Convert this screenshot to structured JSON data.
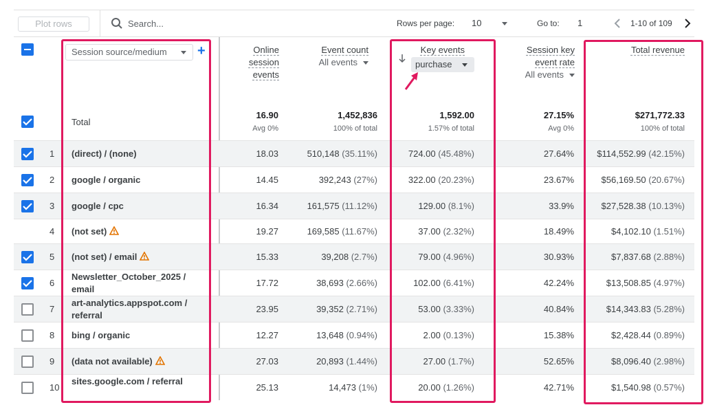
{
  "toolbar": {
    "plot_rows": "Plot rows",
    "search_placeholder": "Search...",
    "rows_per_page_label": "Rows per page:",
    "rows_per_page_value": "10",
    "goto_label": "Go to:",
    "goto_value": "1",
    "range_text": "1-10 of 109"
  },
  "header": {
    "dimension": "Session source/medium",
    "col_online": [
      "Online",
      "session",
      "events"
    ],
    "col_event_count": "Event count",
    "col_event_count_sub": "All events",
    "col_key_events": "Key events",
    "col_key_events_sub": "purchase",
    "col_session_key": [
      "Session key",
      "event rate"
    ],
    "col_session_key_sub": "All events",
    "col_revenue": "Total revenue"
  },
  "total": {
    "label": "Total",
    "online": "16.90",
    "online_sub": "Avg 0%",
    "event_count": "1,452,836",
    "event_count_sub": "100% of total",
    "key_events": "1,592.00",
    "key_events_sub": "1.57% of total",
    "session_rate": "27.15%",
    "session_rate_sub": "Avg 0%",
    "revenue": "$271,772.33",
    "revenue_sub": "100% of total"
  },
  "rows": [
    {
      "num": "1",
      "dim": "(direct) / (none)",
      "warn": false,
      "checked": true,
      "online": "18.03",
      "ec": "510,148",
      "ec_pct": "(35.11%)",
      "ke": "724.00",
      "ke_pct": "(45.48%)",
      "rate": "27.64%",
      "rev": "$114,552.99",
      "rev_pct": "(42.15%)"
    },
    {
      "num": "2",
      "dim": "google / organic",
      "warn": false,
      "checked": true,
      "online": "14.45",
      "ec": "392,243",
      "ec_pct": "(27%)",
      "ke": "322.00",
      "ke_pct": "(20.23%)",
      "rate": "23.67%",
      "rev": "$56,169.50",
      "rev_pct": "(20.67%)"
    },
    {
      "num": "3",
      "dim": "google / cpc",
      "warn": false,
      "checked": true,
      "online": "16.34",
      "ec": "161,575",
      "ec_pct": "(11.12%)",
      "ke": "129.00",
      "ke_pct": "(8.1%)",
      "rate": "33.9%",
      "rev": "$27,528.38",
      "rev_pct": "(10.13%)"
    },
    {
      "num": "4",
      "dim": "(not set)",
      "warn": true,
      "checked": null,
      "online": "19.27",
      "ec": "169,585",
      "ec_pct": "(11.67%)",
      "ke": "37.00",
      "ke_pct": "(2.32%)",
      "rate": "18.49%",
      "rev": "$4,102.10",
      "rev_pct": "(1.51%)"
    },
    {
      "num": "5",
      "dim": "(not set) / email",
      "warn": true,
      "checked": true,
      "online": "15.33",
      "ec": "39,208",
      "ec_pct": "(2.7%)",
      "ke": "79.00",
      "ke_pct": "(4.96%)",
      "rate": "30.93%",
      "rev": "$7,837.68",
      "rev_pct": "(2.88%)"
    },
    {
      "num": "6",
      "dim": "Newsletter_October_2025 / email",
      "warn": false,
      "checked": true,
      "online": "17.72",
      "ec": "38,693",
      "ec_pct": "(2.66%)",
      "ke": "102.00",
      "ke_pct": "(6.41%)",
      "rate": "42.24%",
      "rev": "$13,508.85",
      "rev_pct": "(4.97%)"
    },
    {
      "num": "7",
      "dim": "art-analytics.appspot.com / referral",
      "warn": false,
      "checked": false,
      "online": "23.95",
      "ec": "39,352",
      "ec_pct": "(2.71%)",
      "ke": "53.00",
      "ke_pct": "(3.33%)",
      "rate": "40.84%",
      "rev": "$14,343.83",
      "rev_pct": "(5.28%)"
    },
    {
      "num": "8",
      "dim": "bing / organic",
      "warn": false,
      "checked": false,
      "online": "12.27",
      "ec": "13,648",
      "ec_pct": "(0.94%)",
      "ke": "2.00",
      "ke_pct": "(0.13%)",
      "rate": "15.38%",
      "rev": "$2,428.44",
      "rev_pct": "(0.89%)"
    },
    {
      "num": "9",
      "dim": "(data not available)",
      "warn": true,
      "checked": false,
      "online": "27.03",
      "ec": "20,893",
      "ec_pct": "(1.44%)",
      "ke": "27.00",
      "ke_pct": "(1.7%)",
      "rate": "52.65%",
      "rev": "$8,096.40",
      "rev_pct": "(2.98%)"
    },
    {
      "num": "10",
      "dim": "sites.google.com / referral",
      "warn": false,
      "checked": false,
      "online": "25.13",
      "ec": "14,473",
      "ec_pct": "(1%)",
      "ke": "20.00",
      "ke_pct": "(1.26%)",
      "rate": "42.71%",
      "rev": "$1,540.98",
      "rev_pct": "(0.57%)"
    }
  ],
  "colors": {
    "accent": "#1a73e8",
    "highlight": "#e0195f",
    "warning": "#e37400"
  }
}
